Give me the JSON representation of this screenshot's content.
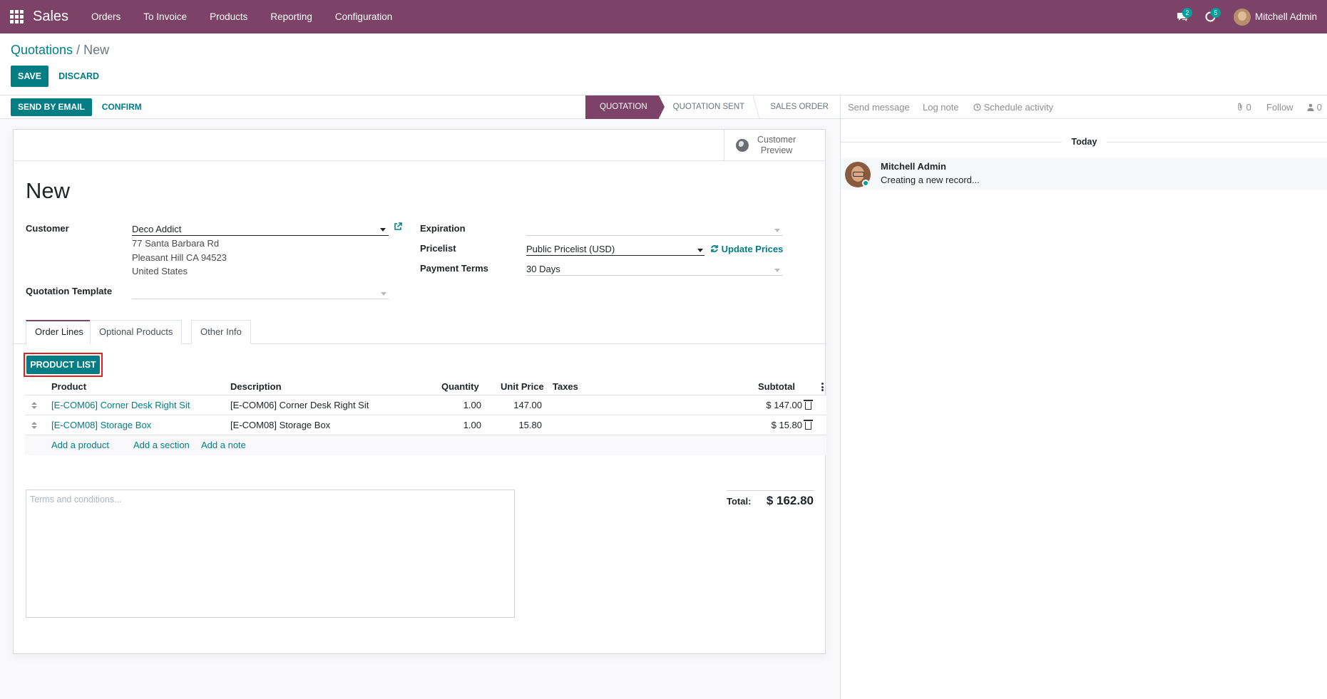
{
  "navbar": {
    "app_name": "Sales",
    "menu": [
      "Orders",
      "To Invoice",
      "Products",
      "Reporting",
      "Configuration"
    ],
    "messages_count": "2",
    "activities_count": "5",
    "user_name": "Mitchell Admin",
    "brand_color": "#7c4268"
  },
  "breadcrumb": {
    "parent": "Quotations",
    "separator": "/",
    "current": "New"
  },
  "control_panel": {
    "save_label": "SAVE",
    "discard_label": "DISCARD"
  },
  "statusbar": {
    "send_email_label": "SEND BY EMAIL",
    "confirm_label": "CONFIRM",
    "stages": [
      "QUOTATION",
      "QUOTATION SENT",
      "SALES ORDER"
    ],
    "active_stage": "QUOTATION"
  },
  "sheet": {
    "customer_preview_line1": "Customer",
    "customer_preview_line2": "Preview",
    "title": "New"
  },
  "fields": {
    "customer_label": "Customer",
    "customer_value": "Deco Addict",
    "address_line1": "77 Santa Barbara Rd",
    "address_line2": "Pleasant Hill CA 94523",
    "address_line3": "United States",
    "template_label": "Quotation Template",
    "expiration_label": "Expiration",
    "pricelist_label": "Pricelist",
    "pricelist_value": "Public Pricelist (USD)",
    "update_prices_label": "Update Prices",
    "payment_terms_label": "Payment Terms",
    "payment_terms_value": "30 Days"
  },
  "tabs": [
    "Order Lines",
    "Optional Products",
    "Other Info"
  ],
  "product_list_label": "PRODUCT LIST",
  "order_table": {
    "headers": {
      "product": "Product",
      "description": "Description",
      "quantity": "Quantity",
      "unit_price": "Unit Price",
      "taxes": "Taxes",
      "subtotal": "Subtotal"
    },
    "rows": [
      {
        "product": "[E-COM06] Corner Desk Right Sit",
        "description": "[E-COM06] Corner Desk Right Sit",
        "quantity": "1.00",
        "unit_price": "147.00",
        "taxes": "",
        "subtotal": "$ 147.00"
      },
      {
        "product": "[E-COM08] Storage Box",
        "description": "[E-COM08] Storage Box",
        "quantity": "1.00",
        "unit_price": "15.80",
        "taxes": "",
        "subtotal": "$ 15.80"
      }
    ],
    "add_product": "Add a product",
    "add_section": "Add a section",
    "add_note": "Add a note"
  },
  "terms_placeholder": "Terms and conditions...",
  "totals": {
    "label": "Total:",
    "value": "$ 162.80"
  },
  "chatter": {
    "send_message": "Send message",
    "log_note": "Log note",
    "schedule_activity": "Schedule activity",
    "attachments_count": "0",
    "follow": "Follow",
    "followers_count": "0",
    "today": "Today",
    "message_author": "Mitchell Admin",
    "message_body": "Creating a new record..."
  }
}
